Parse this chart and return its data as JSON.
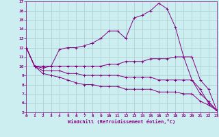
{
  "xlabel": "Windchill (Refroidissement éolien,°C)",
  "bg_color": "#cceef0",
  "line_color": "#800080",
  "grid_color": "#aacccc",
  "xlim": [
    0,
    23
  ],
  "ylim": [
    5,
    17
  ],
  "xticks": [
    0,
    1,
    2,
    3,
    4,
    5,
    6,
    7,
    8,
    9,
    10,
    11,
    12,
    13,
    14,
    15,
    16,
    17,
    18,
    19,
    20,
    21,
    22,
    23
  ],
  "yticks": [
    5,
    6,
    7,
    8,
    9,
    10,
    11,
    12,
    13,
    14,
    15,
    16,
    17
  ],
  "curves": [
    {
      "x": [
        0,
        1,
        2,
        3,
        4,
        5,
        6,
        7,
        8,
        9,
        10,
        11,
        12,
        13,
        14,
        15,
        16,
        17,
        18,
        19,
        20,
        21,
        22,
        23
      ],
      "y": [
        12,
        10,
        9.8,
        10,
        11.8,
        12,
        12,
        12.2,
        12.5,
        13,
        13.8,
        13.8,
        13.0,
        15.2,
        15.5,
        16.0,
        16.8,
        16.2,
        14.2,
        11.0,
        8.5,
        7.5,
        6.0,
        5.2
      ]
    },
    {
      "x": [
        0,
        1,
        2,
        3,
        4,
        5,
        6,
        7,
        8,
        9,
        10,
        11,
        12,
        13,
        14,
        15,
        16,
        17,
        18,
        19,
        20,
        21,
        22,
        23
      ],
      "y": [
        12,
        10,
        10,
        10,
        10,
        10,
        10,
        10,
        10,
        10,
        10.2,
        10.2,
        10.5,
        10.5,
        10.5,
        10.8,
        10.8,
        10.8,
        11.0,
        11.0,
        11.0,
        8.5,
        7.5,
        5.2
      ]
    },
    {
      "x": [
        0,
        1,
        2,
        3,
        4,
        5,
        6,
        7,
        8,
        9,
        10,
        11,
        12,
        13,
        14,
        15,
        16,
        17,
        18,
        19,
        20,
        21,
        22,
        23
      ],
      "y": [
        12,
        10,
        9.5,
        9.5,
        9.5,
        9.2,
        9.2,
        9.0,
        9.0,
        9.0,
        9.0,
        9.0,
        8.8,
        8.8,
        8.8,
        8.8,
        8.5,
        8.5,
        8.5,
        8.5,
        8.5,
        7.0,
        6.2,
        5.2
      ]
    },
    {
      "x": [
        0,
        1,
        2,
        3,
        4,
        5,
        6,
        7,
        8,
        9,
        10,
        11,
        12,
        13,
        14,
        15,
        16,
        17,
        18,
        19,
        20,
        21,
        22,
        23
      ],
      "y": [
        12,
        10,
        9.2,
        9.0,
        8.8,
        8.5,
        8.2,
        8.0,
        8.0,
        7.8,
        7.8,
        7.8,
        7.5,
        7.5,
        7.5,
        7.5,
        7.2,
        7.2,
        7.2,
        7.0,
        7.0,
        6.2,
        5.8,
        5.2
      ]
    }
  ]
}
